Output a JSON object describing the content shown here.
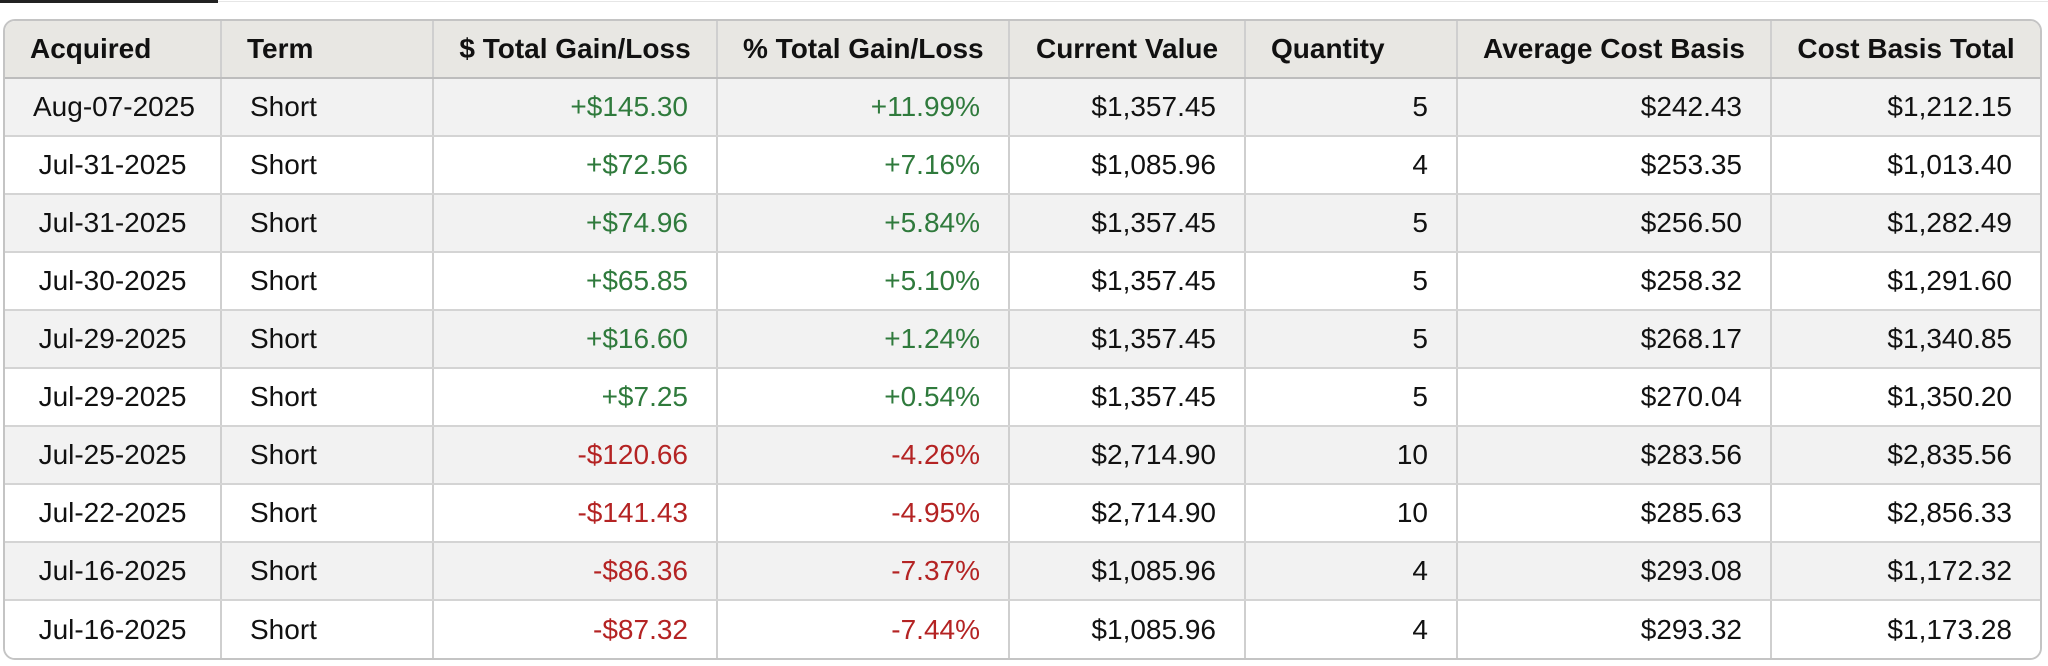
{
  "colors": {
    "header_bg": "#e8e7e3",
    "row_alt_bg": "#f2f2f2",
    "positive": "#2f7a3c",
    "negative": "#b42323"
  },
  "table": {
    "headers": {
      "acquired": "Acquired",
      "term": "Term",
      "dollar_gain_loss": "$ Total Gain/Loss",
      "pct_gain_loss": "% Total Gain/Loss",
      "current_value": "Current Value",
      "quantity": "Quantity",
      "avg_cost_basis": "Average Cost Basis",
      "cost_basis_total": "Cost Basis Total"
    },
    "rows": [
      {
        "acquired": "Aug-07-2025",
        "term": "Short",
        "dollar_gain_loss": "+$145.30",
        "pct_gain_loss": "+11.99%",
        "current_value": "$1,357.45",
        "quantity": "5",
        "avg_cost_basis": "$242.43",
        "cost_basis_total": "$1,212.15"
      },
      {
        "acquired": "Jul-31-2025",
        "term": "Short",
        "dollar_gain_loss": "+$72.56",
        "pct_gain_loss": "+7.16%",
        "current_value": "$1,085.96",
        "quantity": "4",
        "avg_cost_basis": "$253.35",
        "cost_basis_total": "$1,013.40"
      },
      {
        "acquired": "Jul-31-2025",
        "term": "Short",
        "dollar_gain_loss": "+$74.96",
        "pct_gain_loss": "+5.84%",
        "current_value": "$1,357.45",
        "quantity": "5",
        "avg_cost_basis": "$256.50",
        "cost_basis_total": "$1,282.49"
      },
      {
        "acquired": "Jul-30-2025",
        "term": "Short",
        "dollar_gain_loss": "+$65.85",
        "pct_gain_loss": "+5.10%",
        "current_value": "$1,357.45",
        "quantity": "5",
        "avg_cost_basis": "$258.32",
        "cost_basis_total": "$1,291.60"
      },
      {
        "acquired": "Jul-29-2025",
        "term": "Short",
        "dollar_gain_loss": "+$16.60",
        "pct_gain_loss": "+1.24%",
        "current_value": "$1,357.45",
        "quantity": "5",
        "avg_cost_basis": "$268.17",
        "cost_basis_total": "$1,340.85"
      },
      {
        "acquired": "Jul-29-2025",
        "term": "Short",
        "dollar_gain_loss": "+$7.25",
        "pct_gain_loss": "+0.54%",
        "current_value": "$1,357.45",
        "quantity": "5",
        "avg_cost_basis": "$270.04",
        "cost_basis_total": "$1,350.20"
      },
      {
        "acquired": "Jul-25-2025",
        "term": "Short",
        "dollar_gain_loss": "-$120.66",
        "pct_gain_loss": "-4.26%",
        "current_value": "$2,714.90",
        "quantity": "10",
        "avg_cost_basis": "$283.56",
        "cost_basis_total": "$2,835.56"
      },
      {
        "acquired": "Jul-22-2025",
        "term": "Short",
        "dollar_gain_loss": "-$141.43",
        "pct_gain_loss": "-4.95%",
        "current_value": "$2,714.90",
        "quantity": "10",
        "avg_cost_basis": "$285.63",
        "cost_basis_total": "$2,856.33"
      },
      {
        "acquired": "Jul-16-2025",
        "term": "Short",
        "dollar_gain_loss": "-$86.36",
        "pct_gain_loss": "-7.37%",
        "current_value": "$1,085.96",
        "quantity": "4",
        "avg_cost_basis": "$293.08",
        "cost_basis_total": "$1,172.32"
      },
      {
        "acquired": "Jul-16-2025",
        "term": "Short",
        "dollar_gain_loss": "-$87.32",
        "pct_gain_loss": "-7.44%",
        "current_value": "$1,085.96",
        "quantity": "4",
        "avg_cost_basis": "$293.32",
        "cost_basis_total": "$1,173.28"
      }
    ]
  }
}
